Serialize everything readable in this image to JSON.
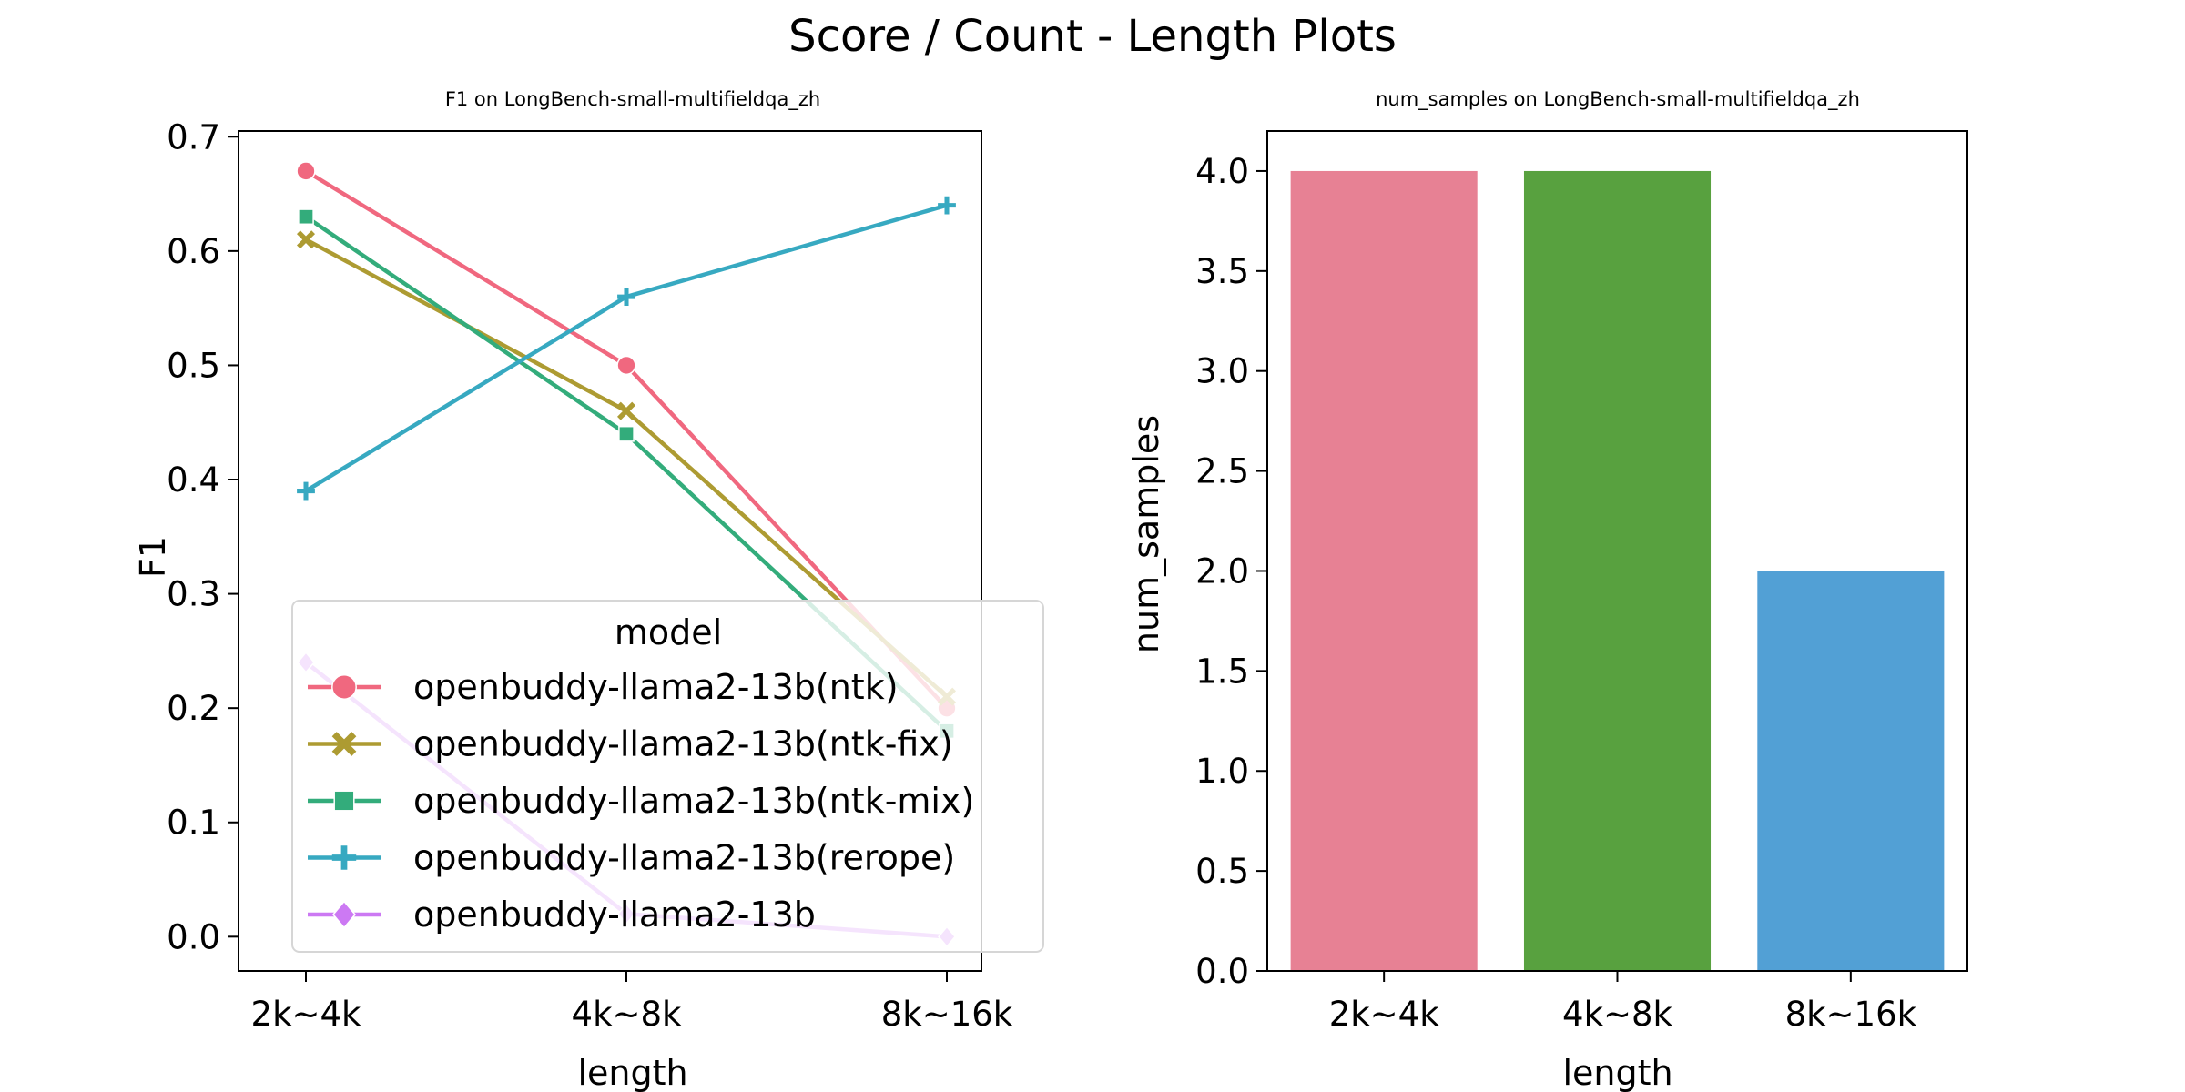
{
  "suptitle": "Score / Count - Length Plots",
  "chart_data": [
    {
      "type": "line",
      "title": "F1 on LongBench-small-multifieldqa_zh",
      "xlabel": "length",
      "ylabel": "F1",
      "categories": [
        "2k~4k",
        "4k~8k",
        "8k~16k"
      ],
      "ylim": [
        -0.03,
        0.705
      ],
      "yticks": [
        0.0,
        0.1,
        0.2,
        0.3,
        0.4,
        0.5,
        0.6,
        0.7
      ],
      "ytick_labels": [
        "0.0",
        "0.1",
        "0.2",
        "0.3",
        "0.4",
        "0.5",
        "0.6",
        "0.7"
      ],
      "grid": false,
      "legend": {
        "title": "model",
        "placement": "lower-left"
      },
      "series": [
        {
          "name": "openbuddy-llama2-13b(ntk)",
          "values": [
            0.67,
            0.5,
            0.2
          ],
          "color": "#f0687f",
          "marker": "circle"
        },
        {
          "name": "openbuddy-llama2-13b(ntk-fix)",
          "values": [
            0.61,
            0.46,
            0.21
          ],
          "color": "#ad9b32",
          "marker": "x"
        },
        {
          "name": "openbuddy-llama2-13b(ntk-mix)",
          "values": [
            0.63,
            0.44,
            0.18
          ],
          "color": "#33ac7b",
          "marker": "square"
        },
        {
          "name": "openbuddy-llama2-13b(rerope)",
          "values": [
            0.39,
            0.56,
            0.64
          ],
          "color": "#37a9c1",
          "marker": "plus"
        },
        {
          "name": "openbuddy-llama2-13b",
          "values": [
            0.24,
            0.02,
            0.0
          ],
          "color": "#cc79f3",
          "marker": "diamond"
        }
      ]
    },
    {
      "type": "bar",
      "title": "num_samples on LongBench-small-multifieldqa_zh",
      "xlabel": "length",
      "ylabel": "num_samples",
      "categories": [
        "2k~4k",
        "4k~8k",
        "8k~16k"
      ],
      "values": [
        4,
        4,
        2
      ],
      "colors": [
        "#e78194",
        "#58a13f",
        "#52a0d5"
      ],
      "ylim": [
        0,
        4.2
      ],
      "yticks": [
        0.0,
        0.5,
        1.0,
        1.5,
        2.0,
        2.5,
        3.0,
        3.5,
        4.0
      ],
      "ytick_labels": [
        "0.0",
        "0.5",
        "1.0",
        "1.5",
        "2.0",
        "2.5",
        "3.0",
        "3.5",
        "4.0"
      ],
      "grid": false
    }
  ]
}
